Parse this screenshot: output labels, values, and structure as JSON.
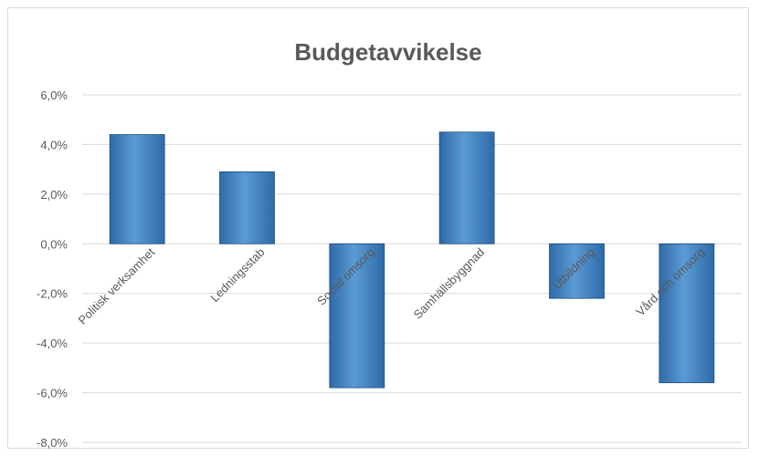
{
  "chart_data": {
    "type": "bar",
    "title": "Budgetavvikelse",
    "categories": [
      "Politisk verksamhet",
      "Ledningsstab",
      "Social omsorg",
      "Samhällsbyggnad",
      "Utbildning",
      "Vård och omsorg"
    ],
    "values": [
      4.4,
      2.9,
      -5.8,
      4.5,
      -2.2,
      -5.6
    ],
    "yticks": [
      "6,0%",
      "4,0%",
      "2,0%",
      "0,0%",
      "-2,0%",
      "-4,0%",
      "-6,0%",
      "-8,0%"
    ],
    "ylim": [
      -8,
      6
    ],
    "unit": "%",
    "grid": true,
    "legend": "none",
    "colors": {
      "bar_light": "#5b9bd5",
      "bar_dark": "#2e6aa8",
      "bar_edge": "#1f4e79",
      "grid": "#d9d9d9",
      "text": "#595959",
      "title": "#595959"
    }
  }
}
